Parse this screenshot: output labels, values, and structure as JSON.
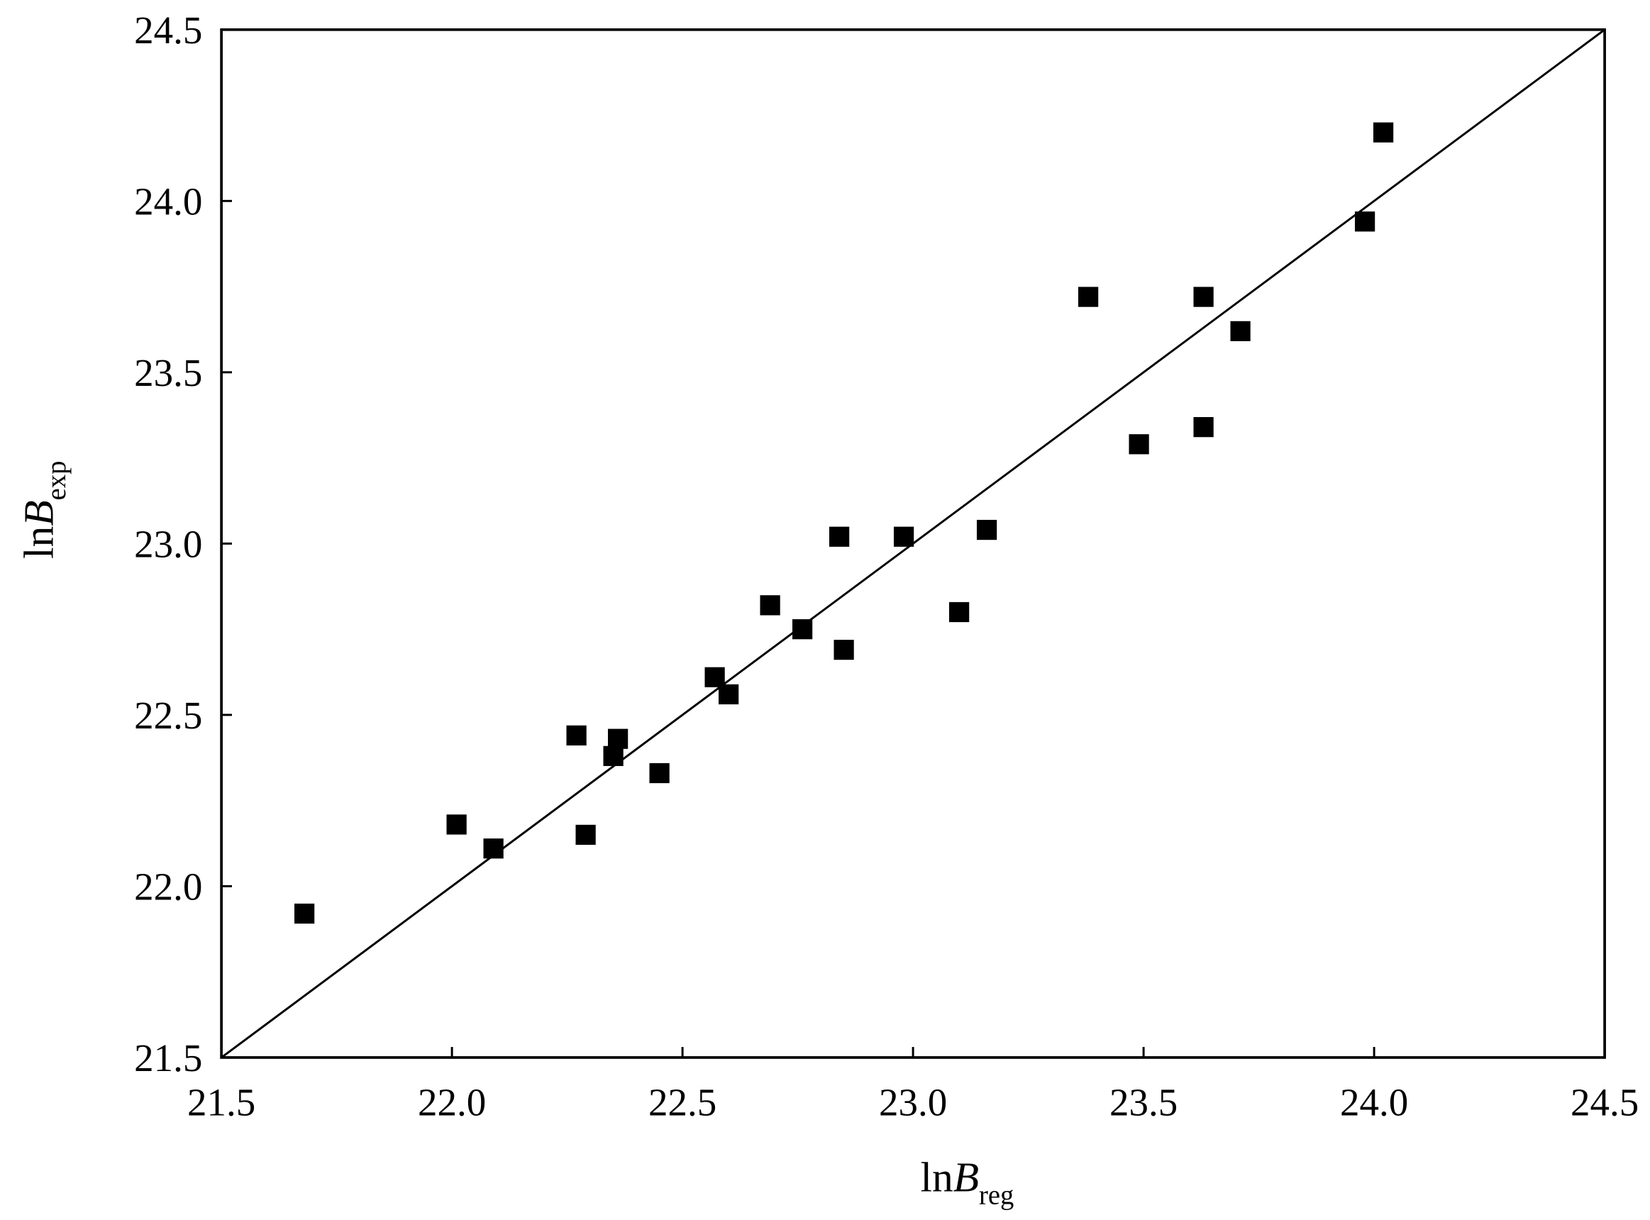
{
  "chart_data": {
    "type": "scatter",
    "xlabel": {
      "main": "ln",
      "italic": "B",
      "sub": "reg"
    },
    "ylabel": {
      "main": "ln",
      "italic": "B",
      "sub": "exp"
    },
    "xlim": [
      21.5,
      24.5
    ],
    "ylim": [
      21.5,
      24.5
    ],
    "xticks": [
      "21.5",
      "22.0",
      "22.5",
      "23.0",
      "23.5",
      "24.0",
      "24.5"
    ],
    "yticks": [
      "21.5",
      "22.0",
      "22.5",
      "23.0",
      "23.5",
      "24.0",
      "24.5"
    ],
    "grid": false,
    "marker": "square",
    "marker_color": "#000000",
    "reference_line": {
      "type": "y=x",
      "color": "#000000"
    },
    "points": [
      {
        "x": 21.68,
        "y": 21.92
      },
      {
        "x": 22.01,
        "y": 22.18
      },
      {
        "x": 22.09,
        "y": 22.11
      },
      {
        "x": 22.27,
        "y": 22.44
      },
      {
        "x": 22.29,
        "y": 22.15
      },
      {
        "x": 22.35,
        "y": 22.38
      },
      {
        "x": 22.36,
        "y": 22.43
      },
      {
        "x": 22.45,
        "y": 22.33
      },
      {
        "x": 22.57,
        "y": 22.61
      },
      {
        "x": 22.6,
        "y": 22.56
      },
      {
        "x": 22.69,
        "y": 22.82
      },
      {
        "x": 22.76,
        "y": 22.75
      },
      {
        "x": 22.84,
        "y": 23.02
      },
      {
        "x": 22.85,
        "y": 22.69
      },
      {
        "x": 22.98,
        "y": 23.02
      },
      {
        "x": 23.1,
        "y": 22.8
      },
      {
        "x": 23.16,
        "y": 23.04
      },
      {
        "x": 23.38,
        "y": 23.72
      },
      {
        "x": 23.49,
        "y": 23.29
      },
      {
        "x": 23.63,
        "y": 23.72
      },
      {
        "x": 23.63,
        "y": 23.34
      },
      {
        "x": 23.71,
        "y": 23.62
      },
      {
        "x": 23.98,
        "y": 23.94
      },
      {
        "x": 24.02,
        "y": 24.2
      }
    ]
  }
}
